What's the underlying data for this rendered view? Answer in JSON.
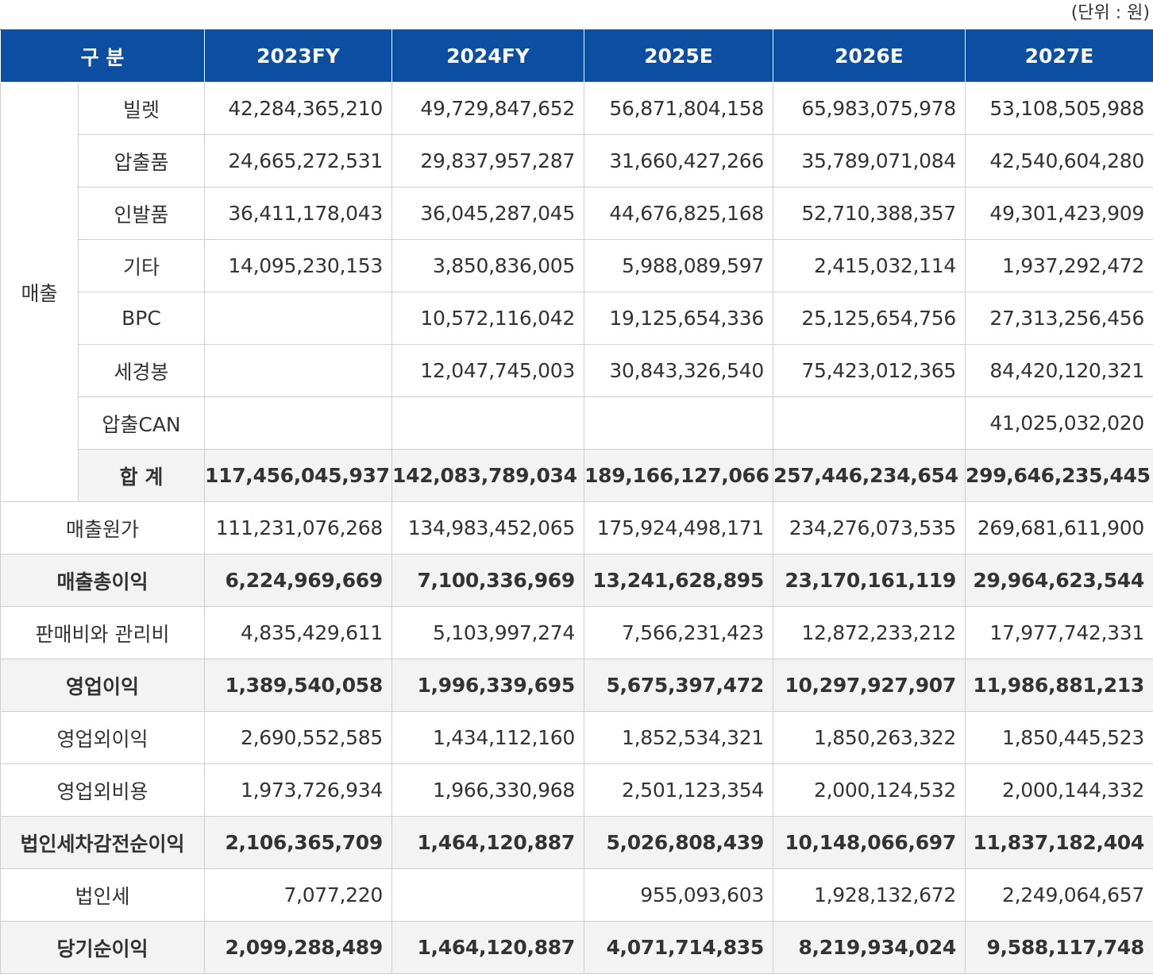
{
  "unit": "(단위 : 원)",
  "table": {
    "header": [
      "구 분",
      "2023FY",
      "2024FY",
      "2025E",
      "2026E",
      "2027E"
    ],
    "sales": {
      "label": "매출",
      "rows": [
        {
          "label": "빌렛",
          "values": [
            "42,284,365,210",
            "49,729,847,652",
            "56,871,804,158",
            "65,983,075,978",
            "53,108,505,988"
          ]
        },
        {
          "label": "압출품",
          "values": [
            "24,665,272,531",
            "29,837,957,287",
            "31,660,427,266",
            "35,789,071,084",
            "42,540,604,280"
          ]
        },
        {
          "label": "인발품",
          "values": [
            "36,411,178,043",
            "36,045,287,045",
            "44,676,825,168",
            "52,710,388,357",
            "49,301,423,909"
          ]
        },
        {
          "label": "기타",
          "values": [
            "14,095,230,153",
            "3,850,836,005",
            "5,988,089,597",
            "2,415,032,114",
            "1,937,292,472"
          ]
        },
        {
          "label": "BPC",
          "values": [
            null,
            "10,572,116,042",
            "19,125,654,336",
            "25,125,654,756",
            "27,313,256,456"
          ]
        },
        {
          "label": "세경봉",
          "values": [
            null,
            "12,047,745,003",
            "30,843,326,540",
            "75,423,012,365",
            "84,420,120,321"
          ]
        },
        {
          "label": "압출CAN",
          "values": [
            null,
            null,
            null,
            null,
            "41,025,032,020"
          ]
        }
      ],
      "total": {
        "label": "합 계",
        "values": [
          "117,456,045,937",
          "142,083,789,034",
          "189,166,127,066",
          "257,446,234,654",
          "299,646,235,445"
        ]
      }
    },
    "rows": [
      {
        "label": "매출원가",
        "values": [
          "111,231,076,268",
          "134,983,452,065",
          "175,924,498,171",
          "234,276,073,535",
          "269,681,611,900"
        ]
      },
      {
        "label": "매출총이익",
        "values": [
          "6,224,969,669",
          "7,100,336,969",
          "13,241,628,895",
          "23,170,161,119",
          "29,964,623,544"
        ]
      },
      {
        "label": "판매비와 관리비",
        "values": [
          "4,835,429,611",
          "5,103,997,274",
          "7,566,231,423",
          "12,872,233,212",
          "17,977,742,331"
        ]
      },
      {
        "label": "영업이익",
        "values": [
          "1,389,540,058",
          "1,996,339,695",
          "5,675,397,472",
          "10,297,927,907",
          "11,986,881,213"
        ]
      },
      {
        "label": "영업외이익",
        "values": [
          "2,690,552,585",
          "1,434,112,160",
          "1,852,534,321",
          "1,850,263,322",
          "1,850,445,523"
        ]
      },
      {
        "label": "영업외비용",
        "values": [
          "1,973,726,934",
          "1,966,330,968",
          "2,501,123,354",
          "2,000,124,532",
          "2,000,144,332"
        ]
      },
      {
        "label": "법인세차감전순이익",
        "values": [
          "2,106,365,709",
          "1,464,120,887",
          "5,026,808,439",
          "10,148,066,697",
          "11,837,182,404"
        ]
      },
      {
        "label": "법인세",
        "values": [
          "7,077,220",
          null,
          "955,093,603",
          "1,928,132,672",
          "2,249,064,657"
        ]
      },
      {
        "label": "당기순이익",
        "values": [
          "2,099,288,489",
          "1,464,120,887",
          "4,071,714,835",
          "8,219,934,024",
          "9,588,117,748"
        ]
      }
    ]
  }
}
